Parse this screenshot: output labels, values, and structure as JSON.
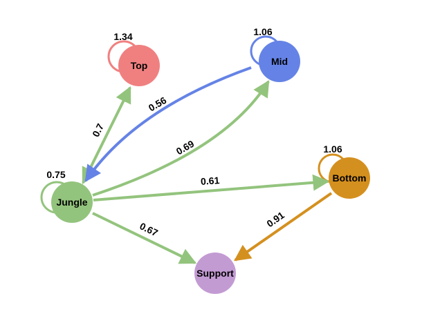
{
  "nodes": [
    {
      "id": "top",
      "label": "Top",
      "color": "#f08080"
    },
    {
      "id": "mid",
      "label": "Mid",
      "color": "#6583e6"
    },
    {
      "id": "jungle",
      "label": "Jungle",
      "color": "#93c47d"
    },
    {
      "id": "bottom",
      "label": "Bottom",
      "color": "#d4901f"
    },
    {
      "id": "support",
      "label": "Support",
      "color": "#c39bd3"
    }
  ],
  "edges": [
    {
      "from": "top",
      "to": "top",
      "weight": "1.34"
    },
    {
      "from": "mid",
      "to": "mid",
      "weight": "1.06"
    },
    {
      "from": "jungle",
      "to": "jungle",
      "weight": "0.75"
    },
    {
      "from": "bottom",
      "to": "bottom",
      "weight": "1.06"
    },
    {
      "from": "jungle",
      "to": "top",
      "weight": "0.7"
    },
    {
      "from": "mid",
      "to": "jungle",
      "weight": "0.56"
    },
    {
      "from": "jungle",
      "to": "mid",
      "weight": "0.69"
    },
    {
      "from": "jungle",
      "to": "bottom",
      "weight": "0.61"
    },
    {
      "from": "jungle",
      "to": "support",
      "weight": "0.67"
    },
    {
      "from": "bottom",
      "to": "support",
      "weight": "0.91"
    }
  ]
}
